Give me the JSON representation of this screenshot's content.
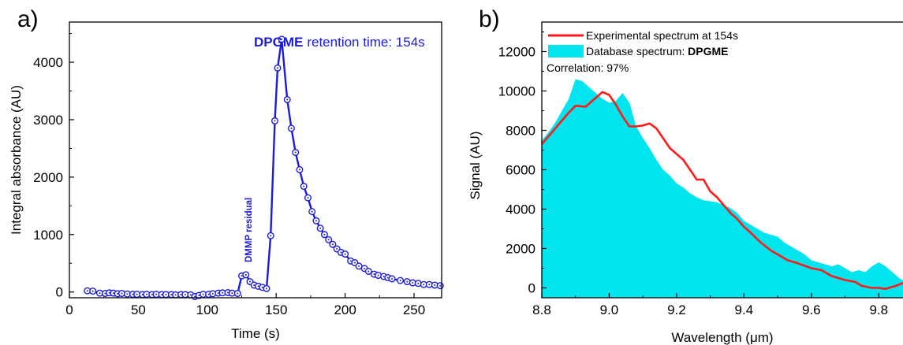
{
  "panels": {
    "a": {
      "label": "a)"
    },
    "b": {
      "label": "b)"
    }
  },
  "chart_data": [
    {
      "type": "line",
      "panel": "a",
      "xlabel": "Time (s)",
      "ylabel": "Integral absorbance (AU)",
      "xlim": [
        0,
        270
      ],
      "ylim": [
        -100,
        4700
      ],
      "xticks": [
        0,
        50,
        100,
        150,
        200,
        250
      ],
      "yticks": [
        0,
        1000,
        2000,
        3000,
        4000
      ],
      "line_color": "#1b1bdb",
      "marker": "open-circle-dot",
      "annotations": {
        "peak_bold": "DPGME",
        "peak_text": "retention time: 154s",
        "residual": "DMMP residual"
      },
      "series": [
        {
          "x": [
            13,
            17,
            22,
            26,
            29,
            32,
            35,
            38,
            42,
            46,
            49,
            53,
            56,
            60,
            63,
            67,
            70,
            74,
            77,
            81,
            84,
            88,
            91,
            94,
            97,
            101,
            104,
            108,
            111,
            115,
            118,
            122,
            125,
            128,
            131,
            134,
            137,
            140,
            143,
            146,
            149,
            151,
            154,
            158,
            161,
            164,
            167,
            170,
            173,
            176,
            179,
            182,
            185,
            188,
            191,
            194,
            197,
            200,
            204,
            207,
            210,
            214,
            217,
            221,
            224,
            228,
            231,
            234,
            240,
            245,
            249,
            253,
            257,
            261,
            265,
            269
          ],
          "y": [
            20,
            15,
            -20,
            -25,
            -15,
            -20,
            -30,
            -25,
            -35,
            -40,
            -40,
            -45,
            -40,
            -45,
            -40,
            -45,
            -45,
            -45,
            -50,
            -45,
            -45,
            -50,
            -80,
            -60,
            -40,
            -40,
            -30,
            -20,
            -15,
            -10,
            -20,
            -25,
            280,
            300,
            180,
            120,
            100,
            80,
            60,
            980,
            2980,
            3900,
            4400,
            3350,
            2850,
            2430,
            2130,
            1840,
            1640,
            1400,
            1240,
            1110,
            1000,
            910,
            830,
            750,
            690,
            660,
            540,
            510,
            450,
            410,
            360,
            310,
            290,
            270,
            250,
            230,
            200,
            180,
            160,
            150,
            130,
            130,
            120,
            110
          ]
        }
      ]
    },
    {
      "type": "area",
      "panel": "b",
      "xlabel": "Wavelength (μm)",
      "ylabel": "Signal (AU)",
      "xlim": [
        8.8,
        9.9
      ],
      "ylim": [
        -500,
        13500
      ],
      "xticks": [
        8.8,
        9.0,
        9.2,
        9.4,
        9.6,
        9.8
      ],
      "yticks": [
        0,
        2000,
        4000,
        6000,
        8000,
        10000,
        12000
      ],
      "legend_position": "top-left",
      "correlation_text": "Correlation: 97%",
      "series": [
        {
          "name": "Experimental spectrum at 154s",
          "kind": "line",
          "color": "#ff1a1a",
          "x": [
            8.8,
            8.83,
            8.86,
            8.88,
            8.9,
            8.93,
            8.95,
            8.98,
            9.0,
            9.02,
            9.04,
            9.06,
            9.08,
            9.1,
            9.12,
            9.14,
            9.16,
            9.18,
            9.2,
            9.22,
            9.24,
            9.26,
            9.28,
            9.3,
            9.32,
            9.34,
            9.36,
            9.38,
            9.4,
            9.42,
            9.45,
            9.48,
            9.5,
            9.53,
            9.56,
            9.6,
            9.63,
            9.66,
            9.7,
            9.73,
            9.75,
            9.78,
            9.8,
            9.82,
            9.85,
            9.88,
            9.9
          ],
          "y": [
            7300,
            7900,
            8500,
            8900,
            9250,
            9200,
            9500,
            9950,
            9800,
            9300,
            8700,
            8200,
            8200,
            8250,
            8350,
            8100,
            7600,
            7100,
            6800,
            6500,
            6000,
            5500,
            5500,
            4900,
            4600,
            4200,
            3800,
            3500,
            3100,
            2800,
            2300,
            1900,
            1700,
            1400,
            1250,
            1000,
            900,
            600,
            400,
            300,
            100,
            0,
            0,
            -50,
            100,
            300,
            400
          ]
        },
        {
          "name": "Database spectrum: ",
          "name_bold": "DPGME",
          "kind": "area",
          "color": "#00e5ee",
          "x": [
            8.8,
            8.82,
            8.84,
            8.86,
            8.88,
            8.9,
            8.92,
            8.94,
            8.96,
            8.98,
            9.0,
            9.02,
            9.04,
            9.06,
            9.08,
            9.1,
            9.12,
            9.14,
            9.16,
            9.18,
            9.2,
            9.22,
            9.24,
            9.26,
            9.28,
            9.3,
            9.32,
            9.34,
            9.36,
            9.38,
            9.4,
            9.42,
            9.44,
            9.46,
            9.48,
            9.5,
            9.52,
            9.54,
            9.56,
            9.58,
            9.6,
            9.62,
            9.64,
            9.66,
            9.68,
            9.7,
            9.72,
            9.74,
            9.76,
            9.78,
            9.8,
            9.82,
            9.84,
            9.86,
            9.88,
            9.9
          ],
          "y": [
            7500,
            7900,
            8400,
            9000,
            9600,
            10600,
            10500,
            10200,
            9900,
            9600,
            9400,
            9500,
            9900,
            9400,
            8200,
            7600,
            7100,
            6500,
            6000,
            5700,
            5300,
            5100,
            4800,
            4600,
            4450,
            4400,
            4350,
            4200,
            4050,
            3800,
            3400,
            3200,
            3000,
            2800,
            2700,
            2600,
            2300,
            2100,
            1900,
            1700,
            1400,
            1300,
            1200,
            1100,
            1200,
            1000,
            800,
            900,
            800,
            1100,
            1300,
            1100,
            800,
            500,
            300,
            200
          ]
        }
      ]
    }
  ]
}
